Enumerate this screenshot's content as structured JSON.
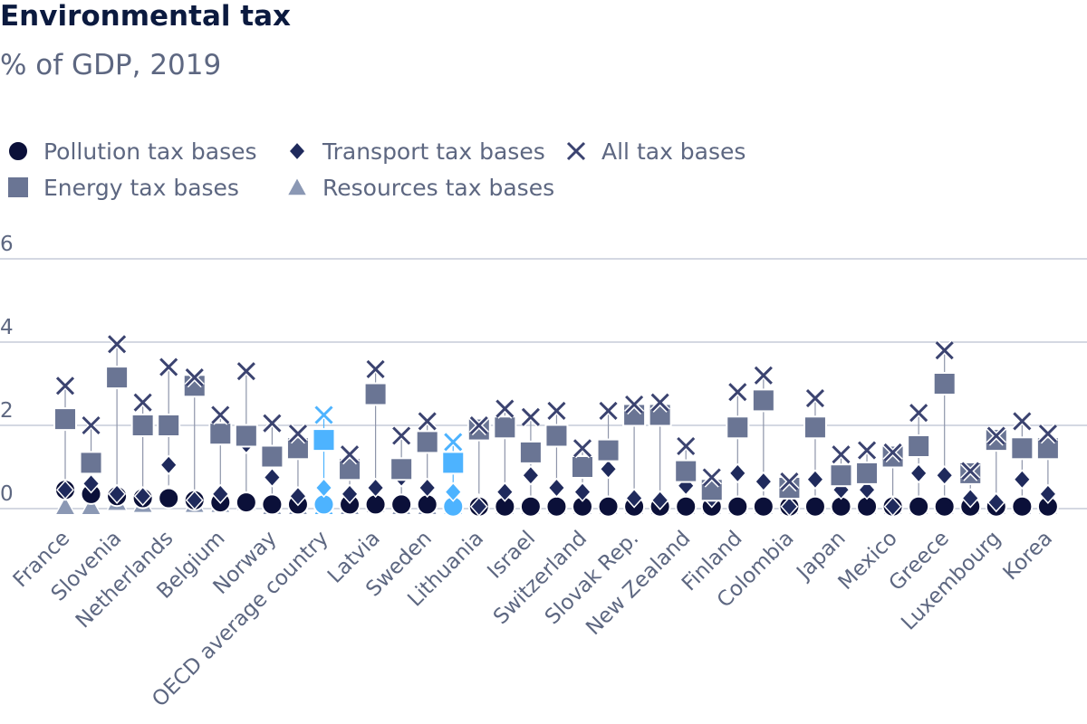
{
  "chart_data": {
    "type": "scatter",
    "title": "Environmental tax",
    "subtitle": "% of GDP, 2019",
    "xlabel": "",
    "ylabel": "",
    "ylim": [
      0,
      6
    ],
    "yticks": [
      0,
      2,
      4,
      6
    ],
    "grid": true,
    "legend_position": "top-left",
    "highlight_color": "#4db3ff",
    "series": [
      {
        "name": "Pollution tax bases",
        "marker": "circle",
        "color": "#0b1039"
      },
      {
        "name": "Transport tax bases",
        "marker": "diamond",
        "color": "#1f2a5c"
      },
      {
        "name": "All tax bases",
        "marker": "x",
        "color": "#3b4370"
      },
      {
        "name": "Energy tax bases",
        "marker": "square",
        "color": "#6a7594"
      },
      {
        "name": "Resources tax bases",
        "marker": "triangle",
        "color": "#8b98b4"
      }
    ],
    "countries": [
      {
        "label": "France",
        "show_label": true,
        "highlight": false,
        "pollution": 0.45,
        "transport": 0.45,
        "all": 2.95,
        "energy": 2.15,
        "resources": 0.05
      },
      {
        "label": "",
        "show_label": false,
        "highlight": false,
        "pollution": 0.35,
        "transport": 0.6,
        "all": 2.0,
        "energy": 1.1,
        "resources": 0.05
      },
      {
        "label": "Slovenia",
        "show_label": true,
        "highlight": false,
        "pollution": 0.3,
        "transport": 0.35,
        "all": 3.95,
        "energy": 3.15,
        "resources": 0.15
      },
      {
        "label": "",
        "show_label": false,
        "highlight": false,
        "pollution": 0.25,
        "transport": 0.3,
        "all": 2.55,
        "energy": 2.0,
        "resources": 0.1
      },
      {
        "label": "Netherlands",
        "show_label": true,
        "highlight": false,
        "pollution": 0.25,
        "transport": 1.05,
        "all": 3.4,
        "energy": 2.0,
        "resources": 0.3
      },
      {
        "label": "",
        "show_label": false,
        "highlight": false,
        "pollution": 0.2,
        "transport": 0.2,
        "all": 3.15,
        "energy": 2.95,
        "resources": 0.1
      },
      {
        "label": "Belgium",
        "show_label": true,
        "highlight": false,
        "pollution": 0.15,
        "transport": 0.35,
        "all": 2.25,
        "energy": 1.8,
        "resources": 0.1
      },
      {
        "label": "",
        "show_label": false,
        "highlight": false,
        "pollution": 0.15,
        "transport": 1.55,
        "all": 3.3,
        "energy": 1.75,
        "resources": 0.15
      },
      {
        "label": "Norway",
        "show_label": true,
        "highlight": false,
        "pollution": 0.1,
        "transport": 0.75,
        "all": 2.05,
        "energy": 1.25,
        "resources": 0.05
      },
      {
        "label": "",
        "show_label": false,
        "highlight": false,
        "pollution": 0.1,
        "transport": 0.3,
        "all": 1.8,
        "energy": 1.45,
        "resources": 0.05
      },
      {
        "label": "OECD average country",
        "show_label": true,
        "highlight": true,
        "pollution": 0.1,
        "transport": 0.5,
        "all": 2.25,
        "energy": 1.65,
        "resources": 0.05
      },
      {
        "label": "",
        "show_label": false,
        "highlight": false,
        "pollution": 0.1,
        "transport": 0.35,
        "all": 1.3,
        "energy": 0.95,
        "resources": 0.05
      },
      {
        "label": "Latvia",
        "show_label": true,
        "highlight": false,
        "pollution": 0.1,
        "transport": 0.5,
        "all": 3.35,
        "energy": 2.75,
        "resources": 0.1
      },
      {
        "label": "",
        "show_label": false,
        "highlight": false,
        "pollution": 0.1,
        "transport": 0.75,
        "all": 1.75,
        "energy": 0.95,
        "resources": 0.05
      },
      {
        "label": "Sweden",
        "show_label": true,
        "highlight": false,
        "pollution": 0.1,
        "transport": 0.5,
        "all": 2.1,
        "energy": 1.6,
        "resources": 0.05
      },
      {
        "label": "",
        "show_label": false,
        "highlight": true,
        "pollution": 0.05,
        "transport": 0.4,
        "all": 1.6,
        "energy": 1.1,
        "resources": 0.05
      },
      {
        "label": "Lithuania",
        "show_label": true,
        "highlight": false,
        "pollution": 0.05,
        "transport": 0.05,
        "all": 2.0,
        "energy": 1.9,
        "resources": 0.1
      },
      {
        "label": "",
        "show_label": false,
        "highlight": false,
        "pollution": 0.05,
        "transport": 0.4,
        "all": 2.4,
        "energy": 1.95,
        "resources": 0.05
      },
      {
        "label": "Israel",
        "show_label": true,
        "highlight": false,
        "pollution": 0.05,
        "transport": 0.8,
        "all": 2.2,
        "energy": 1.35,
        "resources": 0.05
      },
      {
        "label": "",
        "show_label": false,
        "highlight": false,
        "pollution": 0.05,
        "transport": 0.5,
        "all": 2.35,
        "energy": 1.75,
        "resources": 0.05
      },
      {
        "label": "Switzerland",
        "show_label": true,
        "highlight": false,
        "pollution": 0.05,
        "transport": 0.4,
        "all": 1.45,
        "energy": 1.0,
        "resources": 0.05
      },
      {
        "label": "",
        "show_label": false,
        "highlight": false,
        "pollution": 0.05,
        "transport": 0.95,
        "all": 2.35,
        "energy": 1.4,
        "resources": 0.05
      },
      {
        "label": "Slovak Rep.",
        "show_label": true,
        "highlight": false,
        "pollution": 0.05,
        "transport": 0.25,
        "all": 2.5,
        "energy": 2.25,
        "resources": 0.05
      },
      {
        "label": "",
        "show_label": false,
        "highlight": false,
        "pollution": 0.05,
        "transport": 0.2,
        "all": 2.55,
        "energy": 2.25,
        "resources": 0.05
      },
      {
        "label": "New Zealand",
        "show_label": true,
        "highlight": false,
        "pollution": 0.05,
        "transport": 0.55,
        "all": 1.5,
        "energy": 0.9,
        "resources": 0.05
      },
      {
        "label": "",
        "show_label": false,
        "highlight": false,
        "pollution": 0.05,
        "transport": 0.25,
        "all": 0.75,
        "energy": 0.45,
        "resources": 0.05
      },
      {
        "label": "Finland",
        "show_label": true,
        "highlight": false,
        "pollution": 0.05,
        "transport": 0.85,
        "all": 2.8,
        "energy": 1.95,
        "resources": 0.05
      },
      {
        "label": "",
        "show_label": false,
        "highlight": false,
        "pollution": 0.05,
        "transport": 0.65,
        "all": 3.2,
        "energy": 2.6,
        "resources": 0.05
      },
      {
        "label": "Colombia",
        "show_label": true,
        "highlight": false,
        "pollution": 0.05,
        "transport": 0.05,
        "all": 0.65,
        "energy": 0.5,
        "resources": 0.05
      },
      {
        "label": "",
        "show_label": false,
        "highlight": false,
        "pollution": 0.05,
        "transport": 0.7,
        "all": 2.65,
        "energy": 1.95,
        "resources": 0.05
      },
      {
        "label": "Japan",
        "show_label": true,
        "highlight": false,
        "pollution": 0.05,
        "transport": 0.45,
        "all": 1.3,
        "energy": 0.8,
        "resources": 0.05
      },
      {
        "label": "",
        "show_label": false,
        "highlight": false,
        "pollution": 0.05,
        "transport": 0.45,
        "all": 1.4,
        "energy": 0.85,
        "resources": 0.05
      },
      {
        "label": "Mexico",
        "show_label": true,
        "highlight": false,
        "pollution": 0.05,
        "transport": 0.05,
        "all": 1.35,
        "energy": 1.25,
        "resources": 0.05
      },
      {
        "label": "",
        "show_label": false,
        "highlight": false,
        "pollution": 0.05,
        "transport": 0.85,
        "all": 2.3,
        "energy": 1.5,
        "resources": 0.05
      },
      {
        "label": "Greece",
        "show_label": true,
        "highlight": false,
        "pollution": 0.05,
        "transport": 0.8,
        "all": 3.8,
        "energy": 3.0,
        "resources": 0.05
      },
      {
        "label": "",
        "show_label": false,
        "highlight": false,
        "pollution": 0.05,
        "transport": 0.25,
        "all": 0.9,
        "energy": 0.85,
        "resources": 0.05
      },
      {
        "label": "Luxembourg",
        "show_label": true,
        "highlight": false,
        "pollution": 0.05,
        "transport": 0.15,
        "all": 1.75,
        "energy": 1.65,
        "resources": 0.05
      },
      {
        "label": "",
        "show_label": false,
        "highlight": false,
        "pollution": 0.05,
        "transport": 0.7,
        "all": 2.1,
        "energy": 1.45,
        "resources": 0.05
      },
      {
        "label": "Korea",
        "show_label": true,
        "highlight": false,
        "pollution": 0.05,
        "transport": 0.35,
        "all": 1.8,
        "energy": 1.45,
        "resources": 0.05
      }
    ]
  }
}
